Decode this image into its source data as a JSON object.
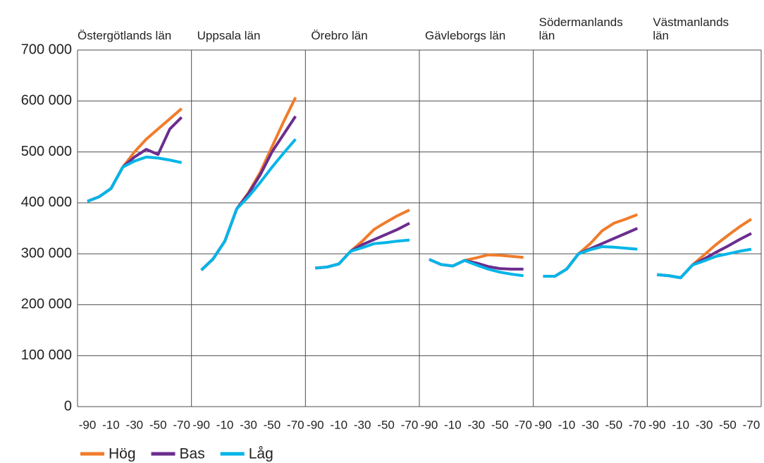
{
  "chart_data": {
    "type": "line",
    "ylim": [
      0,
      700000
    ],
    "yticks": [
      0,
      {
        "value": 100000,
        "label": "100 000"
      },
      {
        "value": 200000,
        "label": "200 000"
      },
      {
        "value": 300000,
        "label": "300 000"
      },
      {
        "value": 400000,
        "label": "400 000"
      },
      {
        "value": 500000,
        "label": "500 000"
      },
      {
        "value": 600000,
        "label": "600 000"
      },
      {
        "value": 700000,
        "label": "700 000"
      }
    ],
    "categories": [
      "-90",
      null,
      "-10",
      null,
      "-30",
      null,
      "-50",
      null,
      "-70"
    ],
    "legend": [
      {
        "name": "Hög",
        "color": "#f07c2b"
      },
      {
        "name": "Bas",
        "color": "#6b2d8f"
      },
      {
        "name": "Låg",
        "color": "#00b5e8"
      }
    ],
    "panels": [
      {
        "title": "Östergötlands län",
        "series": [
          {
            "values": [
              403000,
              412000,
              428000,
              470000,
              500000,
              525000,
              545000,
              565000,
              585000
            ]
          },
          {
            "values": [
              403000,
              412000,
              428000,
              470000,
              490000,
              505000,
              495000,
              545000,
              568000
            ]
          },
          {
            "values": [
              403000,
              412000,
              428000,
              470000,
              482000,
              490000,
              488000,
              484000,
              479000
            ]
          }
        ]
      },
      {
        "title": "Uppsala län",
        "series": [
          {
            "values": [
              268000,
              290000,
              325000,
              388000,
              420000,
              460000,
              510000,
              560000,
              607000
            ]
          },
          {
            "values": [
              268000,
              290000,
              325000,
              388000,
              418000,
              455000,
              500000,
              535000,
              570000
            ]
          },
          {
            "values": [
              268000,
              290000,
              325000,
              388000,
              412000,
              440000,
              470000,
              498000,
              525000
            ]
          }
        ]
      },
      {
        "title": "Örebro län",
        "series": [
          {
            "values": [
              272000,
              274000,
              280000,
              305000,
              325000,
              348000,
              362000,
              375000,
              386000
            ]
          },
          {
            "values": [
              272000,
              274000,
              280000,
              305000,
              318000,
              328000,
              338000,
              348000,
              360000
            ]
          },
          {
            "values": [
              272000,
              274000,
              280000,
              305000,
              312000,
              320000,
              322000,
              325000,
              327000
            ]
          }
        ]
      },
      {
        "title": "Gävleborgs län",
        "series": [
          {
            "values": [
              289000,
              279000,
              276000,
              287000,
              292000,
              298000,
              297000,
              295000,
              293000
            ]
          },
          {
            "values": [
              289000,
              279000,
              276000,
              287000,
              282000,
              275000,
              271000,
              270000,
              270000
            ]
          },
          {
            "values": [
              289000,
              279000,
              276000,
              287000,
              278000,
              270000,
              264000,
              260000,
              257000
            ]
          }
        ]
      },
      {
        "title": "Södermanlands län",
        "series": [
          {
            "values": [
              256000,
              256000,
              270000,
              300000,
              320000,
              345000,
              360000,
              368000,
              377000
            ]
          },
          {
            "values": [
              256000,
              256000,
              270000,
              300000,
              310000,
              320000,
              330000,
              340000,
              350000
            ]
          },
          {
            "values": [
              256000,
              256000,
              270000,
              300000,
              308000,
              314000,
              313000,
              311000,
              309000
            ]
          }
        ]
      },
      {
        "title": "Västmanlands län",
        "series": [
          {
            "values": [
              259000,
              257000,
              253000,
              278000,
              298000,
              318000,
              336000,
              353000,
              368000
            ]
          },
          {
            "values": [
              259000,
              257000,
              253000,
              278000,
              290000,
              303000,
              315000,
              328000,
              340000
            ]
          },
          {
            "values": [
              259000,
              257000,
              253000,
              278000,
              286000,
              295000,
              300000,
              305000,
              309000
            ]
          }
        ]
      }
    ]
  }
}
